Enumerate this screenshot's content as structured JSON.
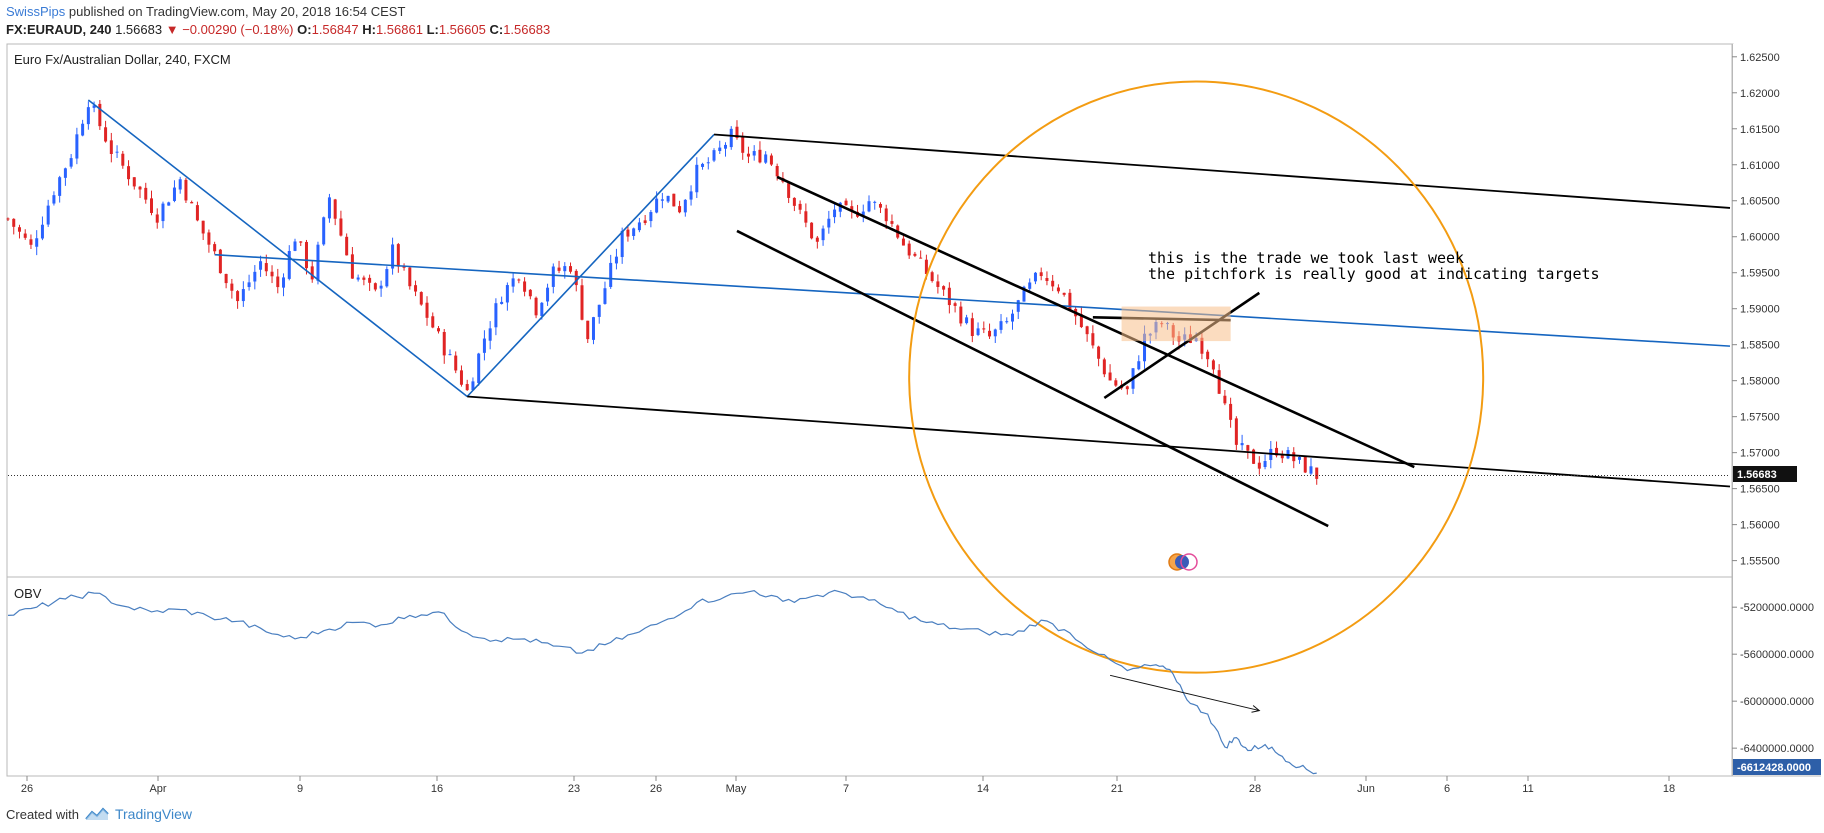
{
  "header": {
    "author": "SwissPips",
    "published_text": "published on TradingView.com, May 20, 2018 16:54 CEST"
  },
  "ohlc": {
    "symbol": "FX:EURAUD, 240",
    "last": "1.56683",
    "change": "▼ −0.00290 (−0.18%)",
    "open_label": "O:",
    "open": "1.56847",
    "high_label": "H:",
    "high": "1.56861",
    "low_label": "L:",
    "low": "1.56605",
    "close_label": "C:",
    "close": "1.56683"
  },
  "footer": {
    "created_with": "Created with",
    "brand": "TradingView"
  },
  "colors": {
    "up": "#2962ff",
    "down": "#e02424",
    "pitchfork": "#1565c0",
    "annotation": "#000000",
    "circle": "#f39c12",
    "obv": "#4a7fc0"
  },
  "chart_data": [
    {
      "type": "candlestick",
      "title": "Euro Fx/Australian Dollar, 240, FXCM",
      "ylim": [
        1.553,
        1.6265
      ],
      "y_ticks": [
        "1.62500",
        "1.62000",
        "1.61500",
        "1.61000",
        "1.60500",
        "1.60000",
        "1.59500",
        "1.59000",
        "1.58500",
        "1.58000",
        "1.57500",
        "1.57000",
        "1.56500",
        "1.56000",
        "1.55500"
      ],
      "x_ticks": [
        "26",
        "Apr",
        "9",
        "16",
        "23",
        "26",
        "May",
        "7",
        "14",
        "21",
        "28",
        "Jun",
        "6",
        "11",
        "18"
      ],
      "last_price_label": "1.56683",
      "last_price": 1.56683,
      "annotation_lines": [
        "this is the trade we took last week",
        "the pitchfork is really good at indicating targets"
      ],
      "swing_path": [
        [
          0,
          1.6025
        ],
        [
          4,
          1.5985
        ],
        [
          8,
          1.6065
        ],
        [
          11,
          1.6115
        ],
        [
          14,
          1.619
        ],
        [
          18,
          1.612
        ],
        [
          22,
          1.6075
        ],
        [
          26,
          1.603
        ],
        [
          30,
          1.608
        ],
        [
          33,
          1.602
        ],
        [
          36,
          1.5975
        ],
        [
          40,
          1.591
        ],
        [
          44,
          1.5965
        ],
        [
          47,
          1.593
        ],
        [
          50,
          1.6
        ],
        [
          53,
          1.5945
        ],
        [
          56,
          1.6055
        ],
        [
          60,
          1.595
        ],
        [
          64,
          1.592
        ],
        [
          67,
          1.598
        ],
        [
          70,
          1.593
        ],
        [
          73,
          1.589
        ],
        [
          77,
          1.583
        ],
        [
          80,
          1.5785
        ],
        [
          83,
          1.586
        ],
        [
          86,
          1.592
        ],
        [
          89,
          1.595
        ],
        [
          92,
          1.59
        ],
        [
          95,
          1.595
        ],
        [
          98,
          1.596
        ],
        [
          101,
          1.586
        ],
        [
          104,
          1.593
        ],
        [
          107,
          1.6
        ],
        [
          111,
          1.603
        ],
        [
          114,
          1.606
        ],
        [
          117,
          1.604
        ],
        [
          120,
          1.609
        ],
        [
          123,
          1.611
        ],
        [
          126,
          1.614
        ],
        [
          129,
          1.611
        ],
        [
          132,
          1.6115
        ],
        [
          135,
          1.608
        ],
        [
          138,
          1.603
        ],
        [
          141,
          1.599
        ],
        [
          144,
          1.604
        ],
        [
          147,
          1.603
        ],
        [
          150,
          1.605
        ],
        [
          153,
          1.603
        ],
        [
          156,
          1.599
        ],
        [
          159,
          1.596
        ],
        [
          162,
          1.593
        ],
        [
          165,
          1.59
        ],
        [
          168,
          1.587
        ],
        [
          171,
          1.586
        ],
        [
          174,
          1.588
        ],
        [
          177,
          1.592
        ],
        [
          180,
          1.595
        ],
        [
          183,
          1.593
        ],
        [
          186,
          1.589
        ],
        [
          189,
          1.5845
        ],
        [
          192,
          1.58
        ],
        [
          195,
          1.5785
        ],
        [
          198,
          1.586
        ],
        [
          201,
          1.588
        ],
        [
          204,
          1.5855
        ],
        [
          207,
          1.586
        ],
        [
          210,
          1.5825
        ],
        [
          212,
          1.576
        ],
        [
          214,
          1.571
        ],
        [
          216,
          1.5695
        ],
        [
          218,
          1.5685
        ],
        [
          221,
          1.5705
        ],
        [
          224,
          1.569
        ],
        [
          226,
          1.568
        ],
        [
          228,
          1.5668
        ]
      ],
      "candle_count": 228,
      "x_domain": [
        0,
        300
      ],
      "pitchfork": {
        "points": [
          [
            14,
            1.619
          ],
          [
            80,
            1.5778
          ],
          [
            123,
            1.6142
          ]
        ],
        "median_end": [
          300,
          1.5848
        ]
      },
      "annotations": {
        "upper_line": [
          [
            123,
            1.6142
          ],
          [
            300,
            1.604
          ]
        ],
        "lower_line": [
          [
            80,
            1.5778
          ],
          [
            300,
            1.5653
          ]
        ],
        "channel_upper": [
          [
            134,
            1.6083
          ],
          [
            245,
            1.568
          ]
        ],
        "channel_lower": [
          [
            127,
            1.6008
          ],
          [
            230,
            1.5598
          ]
        ],
        "trigger_a": [
          [
            191,
            1.5776
          ],
          [
            218,
            1.5922
          ]
        ],
        "trigger_b": [
          [
            189,
            1.5888
          ],
          [
            213,
            1.5884
          ]
        ],
        "zone": {
          "x": [
            194,
            213
          ],
          "y": [
            1.5855,
            1.5903
          ]
        },
        "circle": {
          "cx": 207,
          "cy": 1.5805,
          "r": 50
        }
      }
    },
    {
      "type": "line",
      "title": "OBV",
      "ylim": [
        -6620000,
        -4960000
      ],
      "y_ticks": [
        "-5200000.0000",
        "-5600000.0000",
        "-6000000.0000",
        "-6400000.0000"
      ],
      "last_value_label": "-6612428.0000",
      "path": [
        [
          0,
          -5270000
        ],
        [
          5,
          -5200000
        ],
        [
          10,
          -5130000
        ],
        [
          15,
          -5080000
        ],
        [
          20,
          -5190000
        ],
        [
          25,
          -5240000
        ],
        [
          30,
          -5220000
        ],
        [
          35,
          -5280000
        ],
        [
          40,
          -5320000
        ],
        [
          45,
          -5410000
        ],
        [
          50,
          -5470000
        ],
        [
          55,
          -5400000
        ],
        [
          60,
          -5330000
        ],
        [
          65,
          -5350000
        ],
        [
          70,
          -5270000
        ],
        [
          75,
          -5240000
        ],
        [
          80,
          -5420000
        ],
        [
          85,
          -5480000
        ],
        [
          90,
          -5470000
        ],
        [
          95,
          -5530000
        ],
        [
          100,
          -5590000
        ],
        [
          105,
          -5500000
        ],
        [
          110,
          -5410000
        ],
        [
          115,
          -5300000
        ],
        [
          120,
          -5160000
        ],
        [
          125,
          -5110000
        ],
        [
          130,
          -5060000
        ],
        [
          135,
          -5150000
        ],
        [
          140,
          -5110000
        ],
        [
          145,
          -5070000
        ],
        [
          150,
          -5140000
        ],
        [
          155,
          -5240000
        ],
        [
          160,
          -5330000
        ],
        [
          165,
          -5380000
        ],
        [
          170,
          -5410000
        ],
        [
          175,
          -5440000
        ],
        [
          180,
          -5310000
        ],
        [
          185,
          -5420000
        ],
        [
          190,
          -5600000
        ],
        [
          195,
          -5740000
        ],
        [
          200,
          -5690000
        ],
        [
          203,
          -5770000
        ],
        [
          206,
          -6020000
        ],
        [
          209,
          -6110000
        ],
        [
          212,
          -6390000
        ],
        [
          214,
          -6310000
        ],
        [
          216,
          -6420000
        ],
        [
          219,
          -6370000
        ],
        [
          222,
          -6470000
        ],
        [
          225,
          -6560000
        ],
        [
          228,
          -6612428
        ]
      ],
      "trend_arrow": [
        [
          192,
          -5780000
        ],
        [
          218,
          -6080000
        ]
      ]
    }
  ]
}
